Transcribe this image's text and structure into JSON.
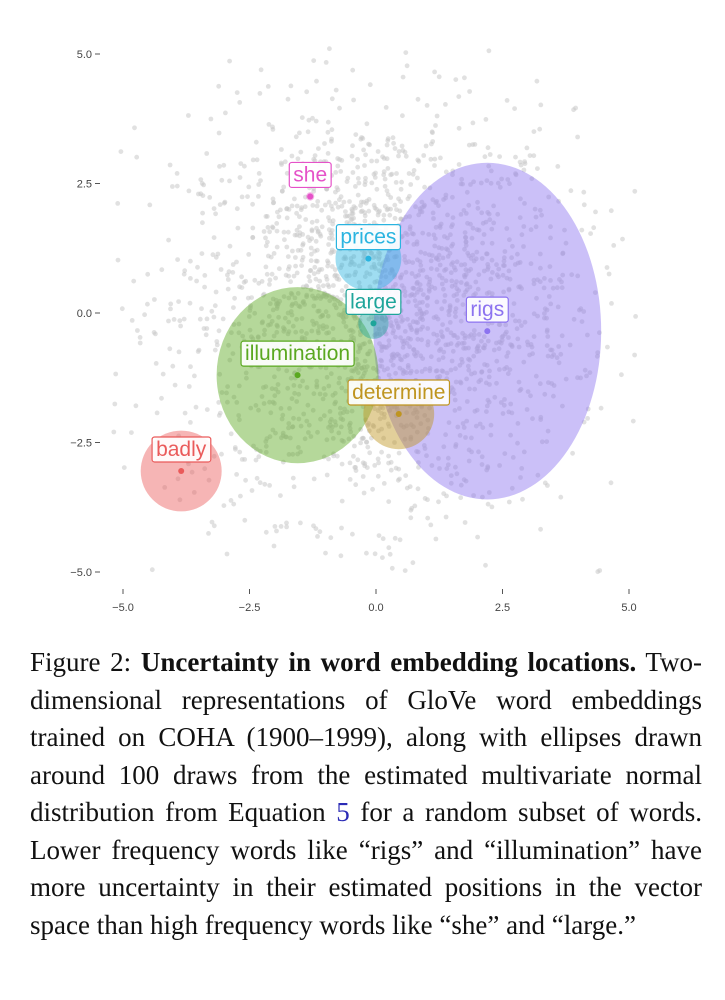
{
  "chart_data": {
    "type": "scatter",
    "xlim": [
      -5.0,
      5.0
    ],
    "ylim": [
      -5.0,
      5.0
    ],
    "x_ticks": [
      "−5.0",
      "−2.5",
      "0.0",
      "2.5",
      "5.0"
    ],
    "y_ticks": [
      "5.0",
      "2.5",
      "0.0",
      "−2.5",
      "−5.0"
    ],
    "grid": false,
    "background_points": {
      "color": "#c8c8c8",
      "count": 2200,
      "distribution": "approximately normal around (0, 0), sd about 1.9"
    },
    "words": [
      {
        "label": "she",
        "x": -1.3,
        "y": 2.25,
        "color": "#e552c8",
        "ellipse_rx": 0.08,
        "ellipse_ry": 0.08
      },
      {
        "label": "prices",
        "x": -0.15,
        "y": 1.05,
        "color": "#2ab4e0",
        "ellipse_rx": 0.65,
        "ellipse_ry": 0.62
      },
      {
        "label": "large",
        "x": -0.05,
        "y": -0.2,
        "color": "#1ea59a",
        "ellipse_rx": 0.3,
        "ellipse_ry": 0.3
      },
      {
        "label": "rigs",
        "x": 2.2,
        "y": -0.35,
        "color": "#8c73f0",
        "ellipse_rx": 2.25,
        "ellipse_ry": 3.25
      },
      {
        "label": "illumination",
        "x": -1.55,
        "y": -1.2,
        "color": "#5aa820",
        "ellipse_rx": 1.6,
        "ellipse_ry": 1.7
      },
      {
        "label": "determine",
        "x": 0.45,
        "y": -1.95,
        "color": "#bf9520",
        "ellipse_rx": 0.7,
        "ellipse_ry": 0.68
      },
      {
        "label": "badly",
        "x": -3.85,
        "y": -3.05,
        "color": "#ea5a5a",
        "ellipse_rx": 0.8,
        "ellipse_ry": 0.78
      }
    ]
  },
  "caption": {
    "label": "Figure 2: ",
    "title": "Uncertainty in word embedding locations.",
    "text_before": " Two-dimensional representations of GloVe word embeddings trained on COHA (1900–1999), along with ellipses drawn around 100 draws from the estimated multivariate normal distribution from Equation ",
    "equation_ref": "5",
    "text_after": " for a random subset of words. Lower frequency words like “rigs” and “illumination” have more uncertainty in their estimated positions in the vector space than high frequency words like “she” and “large.”"
  }
}
